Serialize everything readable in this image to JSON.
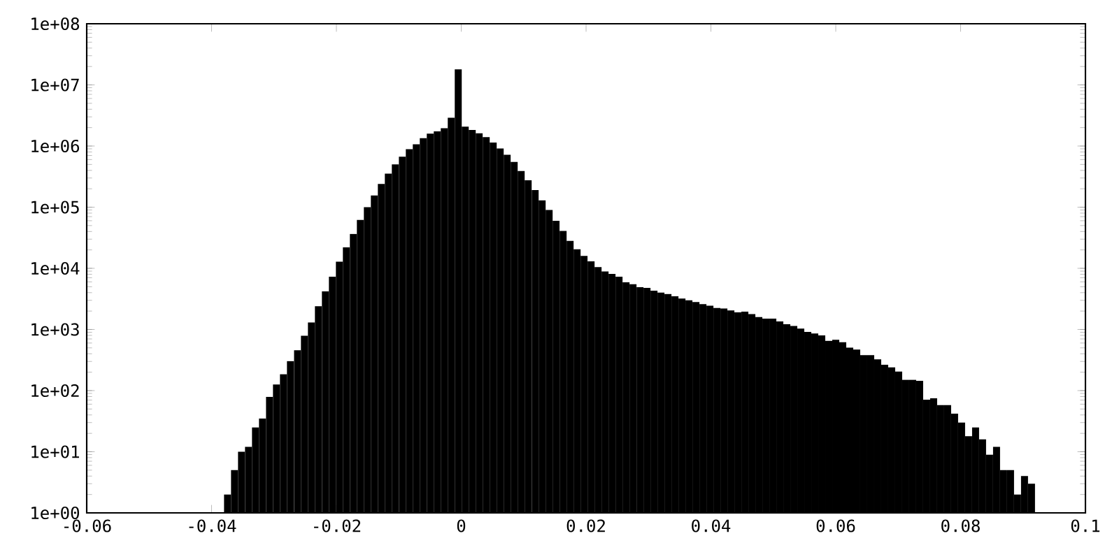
{
  "chart_data": {
    "type": "histogram",
    "bins": [
      -0.038,
      -0.03688,
      -0.03576,
      -0.03464,
      -0.03352,
      -0.0324,
      -0.03128,
      -0.03016,
      -0.02904,
      -0.02792,
      -0.0268,
      -0.02568,
      -0.02456,
      -0.02344,
      -0.02232,
      -0.0212,
      -0.02008,
      -0.01896,
      -0.01784,
      -0.01672,
      -0.0156,
      -0.01448,
      -0.01336,
      -0.01224,
      -0.01112,
      -0.01,
      -0.00888,
      -0.00776,
      -0.00664,
      -0.00552,
      -0.0044,
      -0.00328,
      -0.00216,
      -0.00104,
      8e-05,
      0.0012,
      0.00232,
      0.00344,
      0.00456,
      0.00568,
      0.0068,
      0.00792,
      0.00904,
      0.01016,
      0.01128,
      0.0124,
      0.01352,
      0.01464,
      0.01576,
      0.01688,
      0.018,
      0.01912,
      0.02024,
      0.02136,
      0.02248,
      0.0236,
      0.02472,
      0.02584,
      0.02696,
      0.02808,
      0.0292,
      0.03032,
      0.03144,
      0.03256,
      0.03368,
      0.0348,
      0.03592,
      0.03704,
      0.03816,
      0.03928,
      0.0404,
      0.04152,
      0.04264,
      0.04376,
      0.04488,
      0.046,
      0.04712,
      0.04824,
      0.04936,
      0.05048,
      0.0516,
      0.05272,
      0.05384,
      0.05496,
      0.05608,
      0.0572,
      0.05832,
      0.05944,
      0.06056,
      0.06168,
      0.0628,
      0.06392,
      0.06504,
      0.06616,
      0.06728,
      0.0684,
      0.06952,
      0.07064,
      0.07176,
      0.07288,
      0.074,
      0.07512,
      0.07624,
      0.07736,
      0.07848,
      0.0796,
      0.08072,
      0.08184,
      0.08296,
      0.08408,
      0.0852,
      0.08632,
      0.08744,
      0.08856,
      0.08968,
      0.0908,
      0.09192
    ],
    "values": [
      2,
      5,
      10,
      12,
      25,
      35,
      79,
      126,
      186,
      304,
      457,
      790,
      1300,
      2400,
      4200,
      7300,
      12800,
      22000,
      36600,
      62000,
      100000,
      155000,
      240000,
      354000,
      500000,
      670000,
      890000,
      1070000,
      1340000,
      1600000,
      1740000,
      1960000,
      2900000,
      18000000,
      2070000,
      1830000,
      1620000,
      1400000,
      1140000,
      910000,
      720000,
      550000,
      390000,
      275000,
      190000,
      130000,
      90000,
      60000,
      41000,
      28000,
      20500,
      16000,
      13000,
      10500,
      8900,
      8100,
      7300,
      5900,
      5500,
      4900,
      4800,
      4300,
      4000,
      3800,
      3500,
      3200,
      3000,
      2800,
      2600,
      2450,
      2250,
      2200,
      2050,
      1900,
      1950,
      1780,
      1600,
      1500,
      1500,
      1350,
      1220,
      1140,
      1030,
      910,
      860,
      800,
      650,
      680,
      620,
      505,
      470,
      380,
      380,
      325,
      265,
      240,
      205,
      150,
      150,
      145,
      71,
      75,
      58,
      58,
      42,
      30,
      18,
      25,
      16,
      9,
      12,
      5,
      5,
      2,
      4,
      3
    ],
    "color": "#000000",
    "log": "y",
    "xlim": [
      -0.06,
      0.1
    ],
    "xticks": [
      -0.06,
      -0.04,
      -0.02,
      0,
      0.02,
      0.04,
      0.06,
      0.08,
      0.1
    ],
    "ylim": [
      1,
      100000000
    ],
    "yticks": [
      {
        "value": 1,
        "label": "1e+00"
      },
      {
        "value": 10,
        "label": "1e+01"
      },
      {
        "value": 100,
        "label": "1e+02"
      },
      {
        "value": 1000,
        "label": "1e+03"
      },
      {
        "value": 10000,
        "label": "1e+04"
      },
      {
        "value": 100000,
        "label": "1e+05"
      },
      {
        "value": 1000000,
        "label": "1e+06"
      },
      {
        "value": 10000000,
        "label": "1e+07"
      },
      {
        "value": 100000000,
        "label": "1e+08"
      }
    ]
  }
}
